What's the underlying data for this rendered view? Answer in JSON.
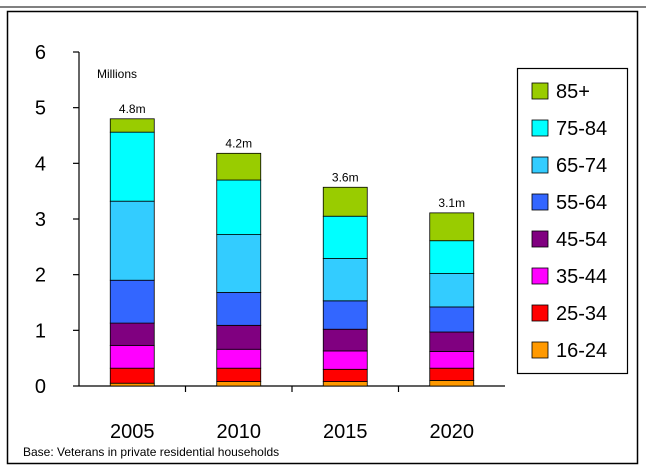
{
  "chart_data": {
    "type": "bar",
    "stacked": true,
    "categories": [
      "2005",
      "2010",
      "2015",
      "2020"
    ],
    "series": [
      {
        "name": "16-24",
        "color": "#FF9900",
        "values": [
          0.05,
          0.08,
          0.08,
          0.1
        ]
      },
      {
        "name": "25-34",
        "color": "#FF0000",
        "values": [
          0.27,
          0.24,
          0.22,
          0.22
        ]
      },
      {
        "name": "35-44",
        "color": "#FF00FF",
        "values": [
          0.41,
          0.34,
          0.33,
          0.3
        ]
      },
      {
        "name": "45-54",
        "color": "#800080",
        "values": [
          0.4,
          0.43,
          0.39,
          0.35
        ]
      },
      {
        "name": "55-64",
        "color": "#3366FF",
        "values": [
          0.77,
          0.59,
          0.51,
          0.45
        ]
      },
      {
        "name": "65-74",
        "color": "#33CCFF",
        "values": [
          1.42,
          1.04,
          0.76,
          0.6
        ]
      },
      {
        "name": "75-84",
        "color": "#00FFFF",
        "values": [
          1.24,
          0.98,
          0.76,
          0.59
        ]
      },
      {
        "name": "85+",
        "color": "#99CC00",
        "values": [
          0.24,
          0.48,
          0.52,
          0.5
        ]
      }
    ],
    "totals_labels": [
      "4.8m",
      "4.2m",
      "3.6m",
      "3.1m"
    ],
    "totals": [
      4.8,
      4.18,
      3.57,
      3.11
    ],
    "unit_label": "Millions",
    "footnote": "Base: Veterans in private residential households",
    "ylim": [
      0,
      6
    ],
    "yticks": [
      "0",
      "1",
      "2",
      "3",
      "4",
      "5",
      "6"
    ],
    "grid": false,
    "legend_position": "right",
    "legend_order": [
      "85+",
      "75-84",
      "65-74",
      "55-64",
      "45-54",
      "35-44",
      "25-34",
      "16-24"
    ]
  }
}
